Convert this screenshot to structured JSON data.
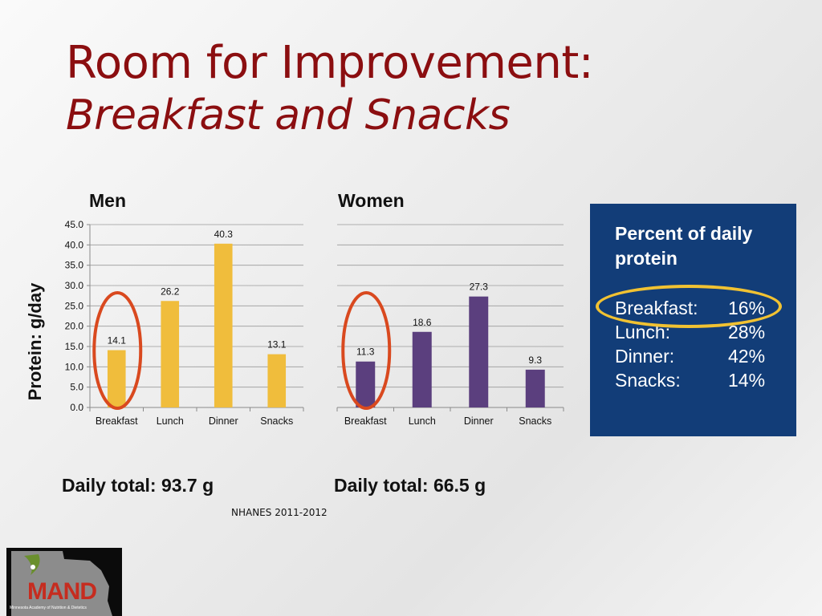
{
  "slide": {
    "title_line1": "Room for Improvement:",
    "title_line2": "Breakfast and Snacks",
    "y_axis_label": "Protein: g/day",
    "source": "NHANES 2011-2012"
  },
  "colors": {
    "title": "#8b0e10",
    "men_bars": "#f0bd3c",
    "women_bars": "#5b3f7e",
    "circle": "#d9491f",
    "infobox_bg": "#123d78",
    "highlight": "#f1c232"
  },
  "infobox": {
    "title": "Percent of daily protein",
    "rows": [
      {
        "label": "Breakfast:",
        "value": "16%"
      },
      {
        "label": "Lunch:",
        "value": "28%"
      },
      {
        "label": "Dinner:",
        "value": "42%"
      },
      {
        "label": "Snacks:",
        "value": "14%"
      }
    ]
  },
  "logo": {
    "text": "MAND",
    "subtext": "Minnesota Academy of Nutrition & Dietetics"
  },
  "chart_data": [
    {
      "type": "bar",
      "title": "Men",
      "categories": [
        "Breakfast",
        "Lunch",
        "Dinner",
        "Snacks"
      ],
      "values": [
        14.1,
        26.2,
        40.3,
        13.1
      ],
      "value_labels": [
        "14.1",
        "26.2",
        "40.3",
        "13.1"
      ],
      "ylabel": "Protein: g/day",
      "ylim": [
        0,
        45
      ],
      "yticks": [
        "0.0",
        "5.0",
        "10.0",
        "15.0",
        "20.0",
        "25.0",
        "30.0",
        "35.0",
        "40.0",
        "45.0"
      ],
      "show_ytick_labels": true,
      "grid": true,
      "highlighted_category": "Breakfast",
      "total": "Daily total: 93.7 g"
    },
    {
      "type": "bar",
      "title": "Women",
      "categories": [
        "Breakfast",
        "Lunch",
        "Dinner",
        "Snacks"
      ],
      "values": [
        11.3,
        18.6,
        27.3,
        9.3
      ],
      "value_labels": [
        "11.3",
        "18.6",
        "27.3",
        "9.3"
      ],
      "ylim": [
        0,
        45
      ],
      "show_ytick_labels": false,
      "grid": true,
      "highlighted_category": "Breakfast",
      "total": "Daily total: 66.5 g"
    }
  ]
}
